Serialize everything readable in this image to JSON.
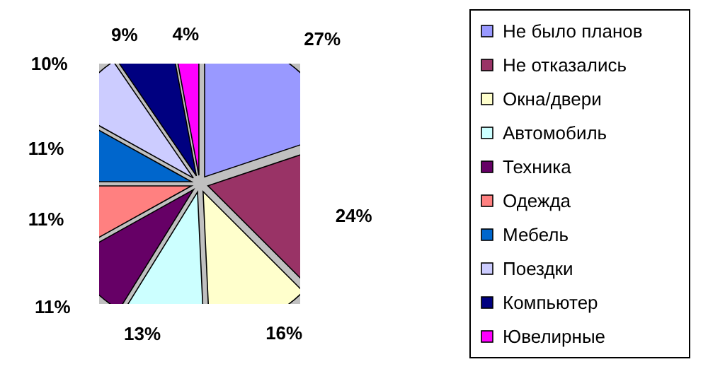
{
  "chart_data": {
    "type": "pie",
    "categories": [
      "Не было планов",
      "Не отказались",
      "Окна/двери",
      "Автомобиль",
      "Техника",
      "Одежда",
      "Мебель",
      "Поездки",
      "Компьютер",
      "Ювелирные"
    ],
    "values": [
      27,
      24,
      16,
      13,
      11,
      11,
      11,
      10,
      9,
      4
    ],
    "value_labels": [
      "27%",
      "24%",
      "16%",
      "13%",
      "11%",
      "11%",
      "11%",
      "10%",
      "9%",
      "4%"
    ],
    "colors": [
      "#9999ff",
      "#993366",
      "#ffffcc",
      "#ccffff",
      "#660066",
      "#ff8080",
      "#0066cc",
      "#ccccff",
      "#000080",
      "#ff00ff"
    ],
    "legend": "right"
  }
}
